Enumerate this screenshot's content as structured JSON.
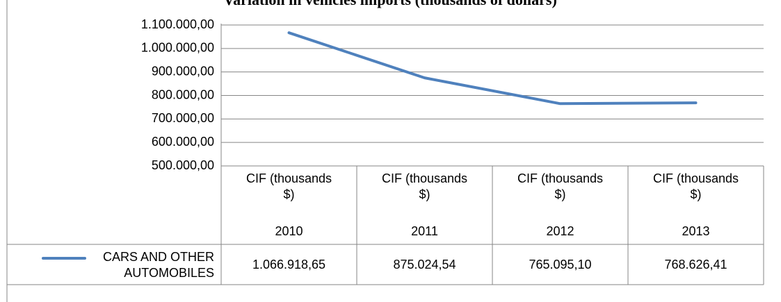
{
  "chart_data": {
    "type": "line",
    "title": "Variation in vehicles imports (thousands of dollars)",
    "categories": [
      "2010",
      "2011",
      "2012",
      "2013"
    ],
    "category_groups": [
      "CIF (thousands $)",
      "CIF (thousands $)",
      "CIF (thousands $)",
      "CIF (thousands $)"
    ],
    "series": [
      {
        "name": "CARS AND OTHER AUTOMOBILES",
        "color": "#4f81bd",
        "values": [
          1066918.65,
          875024.54,
          765095.1,
          768626.41
        ],
        "value_labels": [
          "1.066.918,65",
          "875.024,54",
          "765.095,10",
          "768.626,41"
        ]
      }
    ],
    "ylim": [
      500000,
      1100000
    ],
    "yticks": [
      {
        "value": 500000,
        "label": "500.000,00"
      },
      {
        "value": 600000,
        "label": "600.000,00"
      },
      {
        "value": 700000,
        "label": "700.000,00"
      },
      {
        "value": 800000,
        "label": "800.000,00"
      },
      {
        "value": 900000,
        "label": "900.000,00"
      },
      {
        "value": 1000000,
        "label": "1.000.000,00"
      },
      {
        "value": 1100000,
        "label": "1.100.000,00"
      }
    ],
    "grid": true,
    "data_table": true
  }
}
